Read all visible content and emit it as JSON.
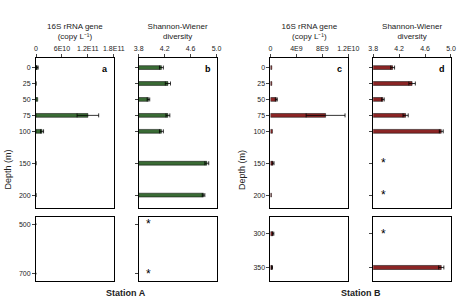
{
  "chart_data": [
    {
      "type": "bar",
      "orientation": "horizontal",
      "xlabel": "16S rRNA gene\n(copy L⁻¹)",
      "ylabel": "Depth (m)",
      "y": [
        0,
        25,
        50,
        75,
        100,
        150,
        200
      ],
      "values": [
        3000000000.0,
        500000000.0,
        4000000000.0,
        120000000000.0,
        14000000000.0,
        300000000.0,
        300000000.0
      ],
      "errors": [
        2000000000.0,
        0,
        0,
        25000000000.0,
        3500000000.0,
        0,
        0
      ],
      "color": "#3a6b35",
      "xlim": [
        0,
        180000000000.0
      ],
      "xticks": [
        0,
        {
          "value": 60000000000.0,
          "label": "6E10"
        },
        {
          "value": 120000000000.0,
          "label": "1.2E11"
        },
        {
          "value": 180000000000.0,
          "label": "1.8E11"
        }
      ],
      "ylim": [
        220,
        -15
      ],
      "yticks": [
        0,
        25,
        50,
        75,
        100,
        150,
        200
      ],
      "grid": false,
      "annotations": [
        {
          "text": "a"
        }
      ]
    },
    {
      "type": "bar",
      "orientation": "horizontal",
      "xlabel": "Station A",
      "y": [
        500,
        700
      ],
      "values": [
        0,
        0
      ],
      "errors": [
        0,
        0
      ],
      "color": "#3a6b35",
      "xlim": [
        0,
        180000000000.0
      ],
      "xticks": [],
      "ylim": [
        730,
        470
      ],
      "yticks": [
        500,
        700
      ],
      "grid": false,
      "tick_labels": "y"
    },
    {
      "type": "bar",
      "orientation": "horizontal",
      "xlabel": "Shannon-Wiener\ndiversity",
      "y": [
        0,
        25,
        50,
        75,
        100,
        150,
        200
      ],
      "values": [
        4.15,
        4.25,
        3.95,
        4.25,
        4.15,
        4.85,
        4.8
      ],
      "errors": [
        0.03,
        0.04,
        0.02,
        0.03,
        0.03,
        0.03,
        0.02
      ],
      "color": "#3a6b35",
      "xlim": [
        3.8,
        5.0
      ],
      "xticks": [
        3.8,
        4.2,
        4.6,
        {
          "value": 5.0,
          "label": "5.0"
        }
      ],
      "ylim": [
        220,
        -15
      ],
      "yticks": [
        0,
        25,
        50,
        75,
        100,
        150,
        200
      ],
      "grid": false,
      "tick_labels": "x",
      "annotations": [
        {
          "text": "b"
        }
      ]
    },
    {
      "type": "bar",
      "orientation": "horizontal",
      "y": [],
      "values": [],
      "xlim": [
        3.8,
        5.0
      ],
      "xticks": [],
      "ylim": [
        730,
        470
      ],
      "yticks": [
        500,
        700
      ],
      "grid": false,
      "tick_labels": false,
      "annotations": [
        {
          "y": 500,
          "text": "*"
        },
        {
          "y": 700,
          "text": "*"
        }
      ]
    },
    {
      "type": "bar",
      "orientation": "horizontal",
      "xlabel": "16S rRNA gene\n(copy L⁻¹)",
      "ylabel": "Depth (m)",
      "y": [
        0,
        25,
        50,
        75,
        100,
        150,
        200
      ],
      "values": [
        200000000.0,
        200000000.0,
        900000000.0,
        8500000000.0,
        300000000.0,
        400000000.0,
        150000000.0
      ],
      "errors": [
        0,
        0,
        150000000.0,
        3000000000.0,
        0,
        150000000.0,
        0
      ],
      "color": "#8b2525",
      "xlim": [
        0,
        12000000000.0
      ],
      "xticks": [
        0,
        {
          "value": 4000000000.0,
          "label": "4E9"
        },
        {
          "value": 8000000000.0,
          "label": "8E9"
        },
        {
          "value": 12000000000.0,
          "label": "1.2E10"
        }
      ],
      "ylim": [
        220,
        -15
      ],
      "yticks": [
        0,
        25,
        50,
        75,
        100,
        150,
        200
      ],
      "grid": false,
      "annotations": [
        {
          "text": "c"
        }
      ]
    },
    {
      "type": "bar",
      "orientation": "horizontal",
      "xlabel": "Station B",
      "y": [
        300,
        350
      ],
      "values": [
        400000000.0,
        250000000.0
      ],
      "errors": [
        120000000.0,
        60000000.0
      ],
      "color": "#8b2525",
      "xlim": [
        0,
        12000000000.0
      ],
      "xticks": [],
      "ylim": [
        370,
        275
      ],
      "yticks": [
        300,
        350
      ],
      "grid": false,
      "tick_labels": "y"
    },
    {
      "type": "bar",
      "orientation": "horizontal",
      "xlabel": "Shannon-Wiener\ndiversity",
      "y": [
        0,
        25,
        50,
        75,
        100
      ],
      "values": [
        4.1,
        4.4,
        3.95,
        4.3,
        4.85
      ],
      "errors": [
        0.03,
        0.05,
        0.02,
        0.04,
        0.03
      ],
      "color": "#8b2525",
      "xlim": [
        3.8,
        5.0
      ],
      "xticks": [
        3.8,
        4.2,
        4.6,
        {
          "value": 5.0,
          "label": "5.0"
        }
      ],
      "ylim": [
        220,
        -15
      ],
      "yticks": [
        0,
        25,
        50,
        75,
        100,
        150,
        200
      ],
      "grid": false,
      "tick_labels": "x",
      "annotations": [
        {
          "text": "d"
        },
        {
          "y": 150,
          "text": "*"
        },
        {
          "y": 200,
          "text": "*"
        }
      ]
    },
    {
      "type": "bar",
      "orientation": "horizontal",
      "y": [
        350
      ],
      "values": [
        4.85
      ],
      "errors": [
        0.04
      ],
      "color": "#8b2525",
      "xlim": [
        3.8,
        5.0
      ],
      "xticks": [],
      "ylim": [
        370,
        275
      ],
      "yticks": [
        300,
        350
      ],
      "grid": false,
      "tick_labels": false,
      "annotations": [
        {
          "y": 300,
          "text": "*"
        }
      ]
    }
  ]
}
